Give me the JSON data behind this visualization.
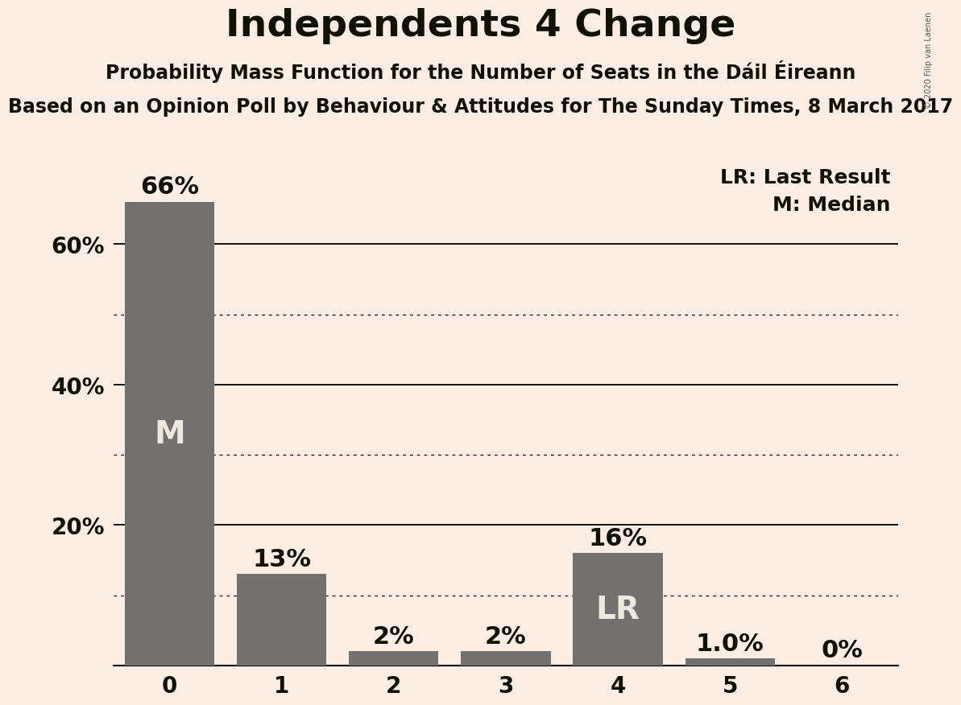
{
  "title": "Independents 4 Change",
  "subtitle1": "Probability Mass Function for the Number of Seats in the Dáil Éireann",
  "subtitle2": "Based on an Opinion Poll by Behaviour & Attitudes for The Sunday Times, 8 March 2017",
  "watermark": "© 2020 Filip van Laenen",
  "categories": [
    0,
    1,
    2,
    3,
    4,
    5,
    6
  ],
  "values": [
    0.66,
    0.13,
    0.02,
    0.02,
    0.16,
    0.01,
    0.0
  ],
  "bar_labels": [
    "66%",
    "13%",
    "2%",
    "2%",
    "16%",
    "1.0%",
    "0%"
  ],
  "bar_color": "#737070",
  "background_color": "#fdeee5",
  "text_color": "#111100",
  "bar_label_color_outside": "#111100",
  "bar_label_color_inside": "#ede8e0",
  "legend_lr_bar": 4,
  "legend_m_bar": 0,
  "legend_lr_text": "LR",
  "legend_m_text": "M",
  "legend_annotation_lr": "LR: Last Result",
  "legend_annotation_m": "M: Median",
  "yticks": [
    0.2,
    0.4,
    0.6
  ],
  "ytick_labels": [
    "20%",
    "40%",
    "60%"
  ],
  "solid_gridlines": [
    0.2,
    0.4,
    0.6
  ],
  "dotted_gridlines": [
    0.1,
    0.3,
    0.5
  ],
  "ylim": [
    0,
    0.72
  ],
  "title_fontsize": 34,
  "subtitle1_fontsize": 17,
  "subtitle2_fontsize": 17,
  "axis_tick_fontsize": 20,
  "bar_label_fontsize": 22,
  "inside_label_fontsize": 28,
  "legend_fontsize": 18,
  "watermark_fontsize": 7
}
